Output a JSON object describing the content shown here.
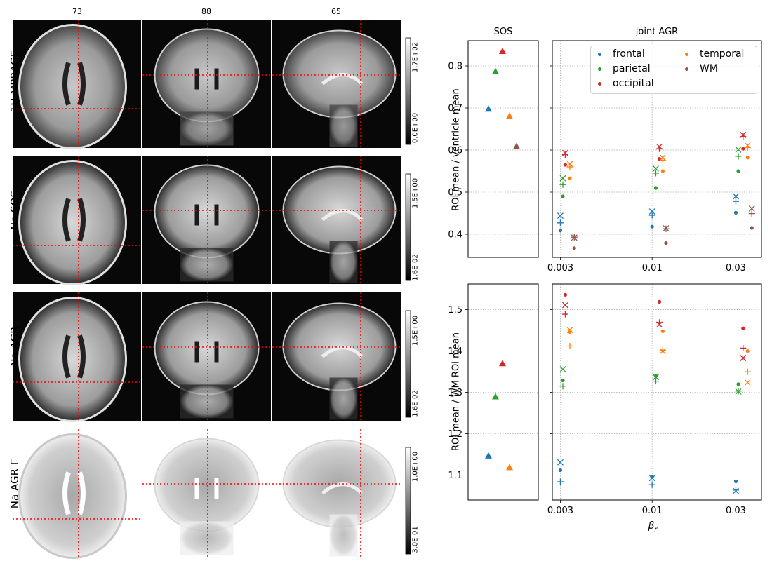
{
  "mri": {
    "slice_labels": [
      "73",
      "88",
      "65"
    ],
    "rows": [
      {
        "label": "1H MPRAGE",
        "cbar_max": "1.7E+02",
        "cbar_min": "0.0E+00"
      },
      {
        "label": "Na SOS",
        "cbar_max": "1.5E+00",
        "cbar_min": "1.6E-02"
      },
      {
        "label": "Na AGR",
        "cbar_max": "1.5E+00",
        "cbar_min": "1.6E-02"
      },
      {
        "label": "Na AGR Γ",
        "cbar_max": "1.0E+00",
        "cbar_min": "3.0E-01"
      }
    ],
    "crosshair_color": "#ff0000"
  },
  "chart_data": [
    {
      "type": "scatter",
      "title": "SOS",
      "ylabel": "ROI mean / ventricle mean",
      "ylim": [
        0.345,
        0.86
      ],
      "yticks": [
        0.4,
        0.5,
        0.6,
        0.7,
        0.8
      ],
      "grid": true,
      "marker": "triangle",
      "points": [
        {
          "series": "frontal",
          "y": 0.698
        },
        {
          "series": "parietal",
          "y": 0.787
        },
        {
          "series": "occipital",
          "y": 0.835
        },
        {
          "series": "temporal",
          "y": 0.681
        },
        {
          "series": "WM",
          "y": 0.609
        }
      ]
    },
    {
      "type": "scatter",
      "title": "joint AGR",
      "xscale": "log",
      "xlim": [
        0.0027,
        0.042
      ],
      "xticks": [
        0.003,
        0.01,
        0.03
      ],
      "xtick_labels": [
        "0.003",
        "0.01",
        "0.03"
      ],
      "ylim": [
        0.345,
        0.86
      ],
      "grid": true,
      "legend": {
        "placement": "top-right",
        "columns": 2,
        "entries": [
          "frontal",
          "parietal",
          "occipital",
          "temporal",
          "WM"
        ]
      },
      "series": [
        {
          "name": "frontal",
          "color": "#1f77b4",
          "points": [
            {
              "x": 0.003,
              "y": 0.409,
              "m": "dot"
            },
            {
              "x": 0.003,
              "y": 0.427,
              "m": "plus"
            },
            {
              "x": 0.003,
              "y": 0.444,
              "m": "x"
            },
            {
              "x": 0.01,
              "y": 0.418,
              "m": "dot"
            },
            {
              "x": 0.01,
              "y": 0.445,
              "m": "plus"
            },
            {
              "x": 0.01,
              "y": 0.454,
              "m": "x"
            },
            {
              "x": 0.03,
              "y": 0.451,
              "m": "dot"
            },
            {
              "x": 0.03,
              "y": 0.478,
              "m": "plus"
            },
            {
              "x": 0.03,
              "y": 0.49,
              "m": "x"
            }
          ]
        },
        {
          "name": "parietal",
          "color": "#2ca02c",
          "points": [
            {
              "x": 0.0031,
              "y": 0.49,
              "m": "dot"
            },
            {
              "x": 0.0031,
              "y": 0.518,
              "m": "plus"
            },
            {
              "x": 0.0031,
              "y": 0.533,
              "m": "x"
            },
            {
              "x": 0.0105,
              "y": 0.51,
              "m": "dot"
            },
            {
              "x": 0.0105,
              "y": 0.545,
              "m": "plus"
            },
            {
              "x": 0.0105,
              "y": 0.556,
              "m": "x"
            },
            {
              "x": 0.031,
              "y": 0.55,
              "m": "dot"
            },
            {
              "x": 0.031,
              "y": 0.585,
              "m": "plus"
            },
            {
              "x": 0.031,
              "y": 0.601,
              "m": "x"
            }
          ]
        },
        {
          "name": "occipital",
          "color": "#d62728",
          "points": [
            {
              "x": 0.0032,
              "y": 0.565,
              "m": "dot"
            },
            {
              "x": 0.0032,
              "y": 0.589,
              "m": "plus"
            },
            {
              "x": 0.0032,
              "y": 0.593,
              "m": "x"
            },
            {
              "x": 0.011,
              "y": 0.579,
              "m": "dot"
            },
            {
              "x": 0.011,
              "y": 0.603,
              "m": "plus"
            },
            {
              "x": 0.011,
              "y": 0.608,
              "m": "x"
            },
            {
              "x": 0.033,
              "y": 0.603,
              "m": "dot"
            },
            {
              "x": 0.033,
              "y": 0.632,
              "m": "plus"
            },
            {
              "x": 0.033,
              "y": 0.636,
              "m": "x"
            }
          ]
        },
        {
          "name": "temporal",
          "color": "#ff7f0e",
          "points": [
            {
              "x": 0.0034,
              "y": 0.533,
              "m": "dot"
            },
            {
              "x": 0.0034,
              "y": 0.56,
              "m": "plus"
            },
            {
              "x": 0.0034,
              "y": 0.567,
              "m": "x"
            },
            {
              "x": 0.0115,
              "y": 0.55,
              "m": "dot"
            },
            {
              "x": 0.0115,
              "y": 0.576,
              "m": "plus"
            },
            {
              "x": 0.0115,
              "y": 0.582,
              "m": "x"
            },
            {
              "x": 0.035,
              "y": 0.582,
              "m": "dot"
            },
            {
              "x": 0.035,
              "y": 0.606,
              "m": "plus"
            },
            {
              "x": 0.035,
              "y": 0.611,
              "m": "x"
            }
          ]
        },
        {
          "name": "WM",
          "color": "#8c564b",
          "points": [
            {
              "x": 0.0036,
              "y": 0.367,
              "m": "dot"
            },
            {
              "x": 0.0036,
              "y": 0.393,
              "m": "plus"
            },
            {
              "x": 0.0036,
              "y": 0.392,
              "m": "x"
            },
            {
              "x": 0.012,
              "y": 0.379,
              "m": "dot"
            },
            {
              "x": 0.012,
              "y": 0.413,
              "m": "plus"
            },
            {
              "x": 0.012,
              "y": 0.414,
              "m": "x"
            },
            {
              "x": 0.037,
              "y": 0.415,
              "m": "dot"
            },
            {
              "x": 0.037,
              "y": 0.449,
              "m": "plus"
            },
            {
              "x": 0.037,
              "y": 0.461,
              "m": "x"
            }
          ]
        }
      ]
    },
    {
      "type": "scatter",
      "title": "",
      "ylabel": "ROI mean / WM ROI mean",
      "ylim": [
        1.04,
        1.562
      ],
      "yticks": [
        1.1,
        1.2,
        1.3,
        1.4,
        1.5
      ],
      "grid": true,
      "marker": "triangle",
      "points": [
        {
          "series": "frontal",
          "y": 1.147
        },
        {
          "series": "parietal",
          "y": 1.29
        },
        {
          "series": "occipital",
          "y": 1.37
        },
        {
          "series": "temporal",
          "y": 1.119
        }
      ]
    },
    {
      "type": "scatter",
      "title": "",
      "xlabel": "β_r",
      "xscale": "log",
      "xlim": [
        0.0027,
        0.042
      ],
      "xticks": [
        0.003,
        0.01,
        0.03
      ],
      "xtick_labels": [
        "0.003",
        "0.01",
        "0.03"
      ],
      "ylim": [
        1.04,
        1.562
      ],
      "grid": true,
      "series": [
        {
          "name": "frontal",
          "color": "#1f77b4",
          "points": [
            {
              "x": 0.003,
              "y": 1.112,
              "m": "dot"
            },
            {
              "x": 0.003,
              "y": 1.084,
              "m": "plus"
            },
            {
              "x": 0.003,
              "y": 1.131,
              "m": "x"
            },
            {
              "x": 0.01,
              "y": 1.096,
              "m": "dot"
            },
            {
              "x": 0.01,
              "y": 1.077,
              "m": "plus"
            },
            {
              "x": 0.01,
              "y": 1.093,
              "m": "x"
            },
            {
              "x": 0.03,
              "y": 1.085,
              "m": "dot"
            },
            {
              "x": 0.03,
              "y": 1.064,
              "m": "plus"
            },
            {
              "x": 0.03,
              "y": 1.062,
              "m": "x"
            }
          ]
        },
        {
          "name": "parietal",
          "color": "#2ca02c",
          "points": [
            {
              "x": 0.0031,
              "y": 1.329,
              "m": "dot"
            },
            {
              "x": 0.0031,
              "y": 1.315,
              "m": "plus"
            },
            {
              "x": 0.0031,
              "y": 1.356,
              "m": "x"
            },
            {
              "x": 0.0105,
              "y": 1.34,
              "m": "dot"
            },
            {
              "x": 0.0105,
              "y": 1.327,
              "m": "plus"
            },
            {
              "x": 0.0105,
              "y": 1.337,
              "m": "x"
            },
            {
              "x": 0.031,
              "y": 1.32,
              "m": "dot"
            },
            {
              "x": 0.031,
              "y": 1.303,
              "m": "plus"
            },
            {
              "x": 0.031,
              "y": 1.302,
              "m": "x"
            }
          ]
        },
        {
          "name": "occipital",
          "color": "#d62728",
          "points": [
            {
              "x": 0.0032,
              "y": 1.536,
              "m": "dot"
            },
            {
              "x": 0.0032,
              "y": 1.489,
              "m": "plus"
            },
            {
              "x": 0.0032,
              "y": 1.511,
              "m": "x"
            },
            {
              "x": 0.011,
              "y": 1.519,
              "m": "dot"
            },
            {
              "x": 0.011,
              "y": 1.469,
              "m": "plus"
            },
            {
              "x": 0.011,
              "y": 1.464,
              "m": "x"
            },
            {
              "x": 0.033,
              "y": 1.455,
              "m": "dot"
            },
            {
              "x": 0.033,
              "y": 1.407,
              "m": "plus"
            },
            {
              "x": 0.033,
              "y": 1.383,
              "m": "x"
            }
          ]
        },
        {
          "name": "temporal",
          "color": "#ff7f0e",
          "points": [
            {
              "x": 0.0034,
              "y": 1.446,
              "m": "dot"
            },
            {
              "x": 0.0034,
              "y": 1.412,
              "m": "plus"
            },
            {
              "x": 0.0034,
              "y": 1.451,
              "m": "x"
            },
            {
              "x": 0.0115,
              "y": 1.448,
              "m": "dot"
            },
            {
              "x": 0.0115,
              "y": 1.402,
              "m": "plus"
            },
            {
              "x": 0.0115,
              "y": 1.4,
              "m": "x"
            },
            {
              "x": 0.035,
              "y": 1.4,
              "m": "dot"
            },
            {
              "x": 0.035,
              "y": 1.35,
              "m": "plus"
            },
            {
              "x": 0.035,
              "y": 1.324,
              "m": "x"
            }
          ]
        }
      ]
    }
  ],
  "colors": {
    "frontal": "#1f77b4",
    "parietal": "#2ca02c",
    "occipital": "#d62728",
    "temporal": "#ff7f0e",
    "WM": "#8c564b",
    "grid": "#b0b0b0"
  }
}
